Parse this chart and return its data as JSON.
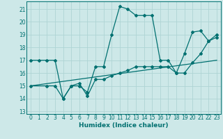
{
  "title": "",
  "xlabel": "Humidex (Indice chaleur)",
  "ylabel": "",
  "xlim": [
    -0.5,
    23.5
  ],
  "ylim": [
    12.8,
    21.6
  ],
  "yticks": [
    13,
    14,
    15,
    16,
    17,
    18,
    19,
    20,
    21
  ],
  "xticks": [
    0,
    1,
    2,
    3,
    4,
    5,
    6,
    7,
    8,
    9,
    10,
    11,
    12,
    13,
    14,
    15,
    16,
    17,
    18,
    19,
    20,
    21,
    22,
    23
  ],
  "bg_color": "#cde8e8",
  "line_color": "#007070",
  "grid_color": "#aed4d4",
  "curve1_x": [
    0,
    1,
    2,
    3,
    4,
    5,
    6,
    7,
    8,
    9,
    10,
    11,
    12,
    13,
    14,
    15,
    16,
    17,
    18,
    19,
    20,
    21,
    22,
    23
  ],
  "curve1_y": [
    17.0,
    17.0,
    17.0,
    17.0,
    14.0,
    15.0,
    15.0,
    14.5,
    16.5,
    16.5,
    19.0,
    21.2,
    21.0,
    20.5,
    20.5,
    20.5,
    17.0,
    17.0,
    16.0,
    17.5,
    19.2,
    19.3,
    18.5,
    19.0
  ],
  "curve2_x": [
    0,
    2,
    3,
    4,
    5,
    6,
    7,
    8,
    9,
    10,
    11,
    12,
    13,
    14,
    15,
    16,
    17,
    18,
    19,
    20,
    21,
    22,
    23
  ],
  "curve2_y": [
    15.0,
    15.0,
    15.0,
    14.0,
    15.0,
    15.2,
    14.2,
    15.5,
    15.5,
    15.8,
    16.0,
    16.2,
    16.5,
    16.5,
    16.5,
    16.5,
    16.5,
    16.0,
    16.0,
    16.8,
    17.5,
    18.5,
    18.8
  ],
  "line3_x": [
    0,
    23
  ],
  "line3_y": [
    15.0,
    17.0
  ]
}
